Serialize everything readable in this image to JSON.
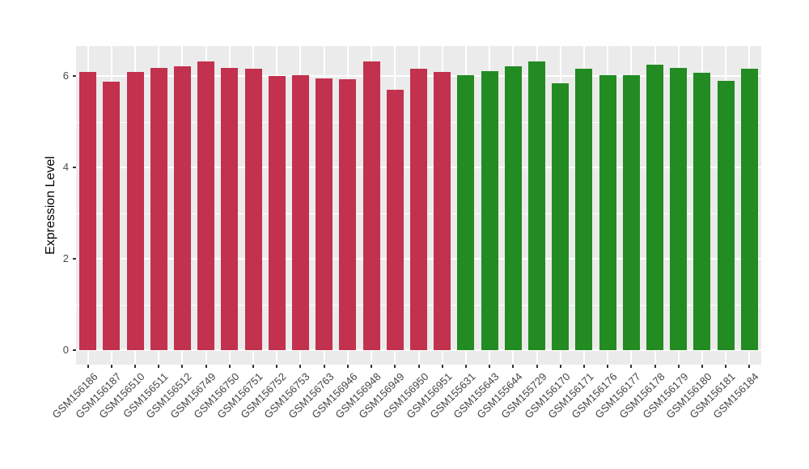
{
  "chart_data": {
    "type": "bar",
    "title": "",
    "xlabel": "",
    "ylabel": "Expression Level",
    "ylim": [
      0,
      6.66
    ],
    "yticks_major": [
      0,
      2,
      4,
      6
    ],
    "yticks_minor": [
      1,
      3,
      5
    ],
    "grid": true,
    "legend_position": "none",
    "categories": [
      "GSM156186",
      "GSM156187",
      "GSM156510",
      "GSM156511",
      "GSM156512",
      "GSM156749",
      "GSM156750",
      "GSM156751",
      "GSM156752",
      "GSM156753",
      "GSM156763",
      "GSM156946",
      "GSM156948",
      "GSM156949",
      "GSM156950",
      "GSM156951",
      "GSM155631",
      "GSM155643",
      "GSM155644",
      "GSM155729",
      "GSM156170",
      "GSM156171",
      "GSM156176",
      "GSM156177",
      "GSM156178",
      "GSM156179",
      "GSM156180",
      "GSM156181",
      "GSM156184"
    ],
    "values": [
      6.1,
      5.88,
      6.1,
      6.19,
      6.21,
      6.33,
      6.19,
      6.17,
      6.0,
      6.03,
      5.96,
      5.93,
      6.32,
      5.71,
      6.16,
      6.1,
      6.03,
      6.11,
      6.21,
      6.33,
      5.84,
      6.16,
      6.02,
      6.03,
      6.25,
      6.18,
      6.08,
      5.9,
      6.17
    ],
    "groups": [
      "red",
      "red",
      "red",
      "red",
      "red",
      "red",
      "red",
      "red",
      "red",
      "red",
      "red",
      "red",
      "red",
      "red",
      "red",
      "red",
      "green",
      "green",
      "green",
      "green",
      "green",
      "green",
      "green",
      "green",
      "green",
      "green",
      "green",
      "green",
      "green"
    ],
    "group_colors": {
      "red": "#C2314E",
      "green": "#228B22"
    }
  },
  "colors": {
    "page_background": "#FFFFFF",
    "panel_background": "#EBEBEB",
    "gridline": "#FFFFFF",
    "axis_text": "#4D4D4D",
    "axis_title": "#000000",
    "tick_mark": "#333333"
  }
}
